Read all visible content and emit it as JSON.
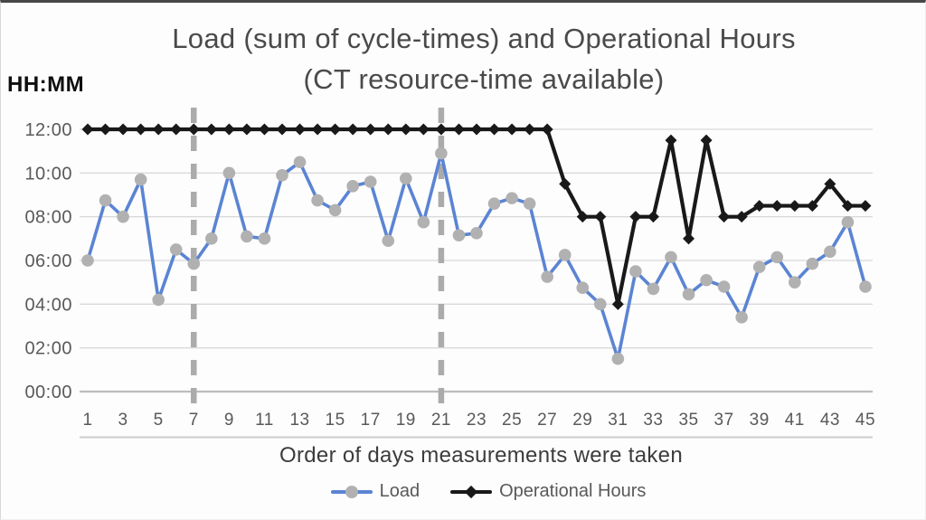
{
  "title_line1": "Load (sum of cycle-times) and Operational Hours",
  "title_line2": "(CT resource-time available)",
  "y_axis_unit_label": "HH:MM",
  "x_axis_title": "Order of days measurements were taken",
  "legend": {
    "items": [
      {
        "label": "Load"
      },
      {
        "label": "Operational Hours"
      }
    ]
  },
  "colors": {
    "load_line": "#5b84d3",
    "load_marker": "#b1b1b1",
    "operational_line": "#191919",
    "gridline": "#d9d9d9",
    "axis_zero_line": "#bdbdbd",
    "axis_baseline": "#cccccc",
    "dashed_guide": "#ababab",
    "tick_text": "#595959",
    "title_text": "#4a4a4a"
  },
  "chart_data": {
    "type": "line",
    "title": "Load (sum of cycle-times) and Operational Hours (CT resource-time available)",
    "xlabel": "Order of days measurements were taken",
    "ylabel": "HH:MM",
    "ylim_hours": [
      0,
      12
    ],
    "y_ticks": [
      "00:00",
      "02:00",
      "04:00",
      "06:00",
      "08:00",
      "10:00",
      "12:00"
    ],
    "x_tick_labels": [
      "1",
      "3",
      "5",
      "7",
      "9",
      "11",
      "13",
      "15",
      "17",
      "19",
      "21",
      "23",
      "25",
      "27",
      "29",
      "31",
      "33",
      "35",
      "37",
      "39",
      "41",
      "43",
      "45"
    ],
    "x_days": 45,
    "grid": "horizontal",
    "legend_position": "bottom",
    "series": [
      {
        "name": "Load",
        "marker": "circle",
        "values_hours": [
          6.0,
          8.75,
          8.0,
          9.7,
          4.2,
          6.5,
          5.85,
          7.0,
          10.0,
          7.1,
          7.0,
          9.9,
          10.5,
          8.75,
          8.3,
          9.4,
          9.6,
          6.9,
          9.75,
          7.75,
          10.9,
          7.15,
          7.25,
          8.6,
          8.85,
          8.6,
          5.25,
          6.25,
          4.75,
          4.0,
          1.5,
          5.5,
          4.7,
          6.15,
          4.45,
          5.1,
          4.8,
          3.4,
          5.7,
          6.15,
          5.0,
          5.85,
          6.4,
          7.75,
          4.8
        ]
      },
      {
        "name": "Operational Hours",
        "marker": "diamond",
        "values_hours": [
          12,
          12,
          12,
          12,
          12,
          12,
          12,
          12,
          12,
          12,
          12,
          12,
          12,
          12,
          12,
          12,
          12,
          12,
          12,
          12,
          12,
          12,
          12,
          12,
          12,
          12,
          12,
          9.5,
          8.0,
          8.0,
          4.0,
          8.0,
          8.0,
          11.5,
          7.0,
          11.5,
          8.0,
          8.0,
          8.5,
          8.5,
          8.5,
          8.5,
          9.5,
          8.5,
          8.5
        ]
      }
    ],
    "annotations": {
      "vertical_dashed_lines_at_day": [
        7,
        21
      ]
    }
  }
}
